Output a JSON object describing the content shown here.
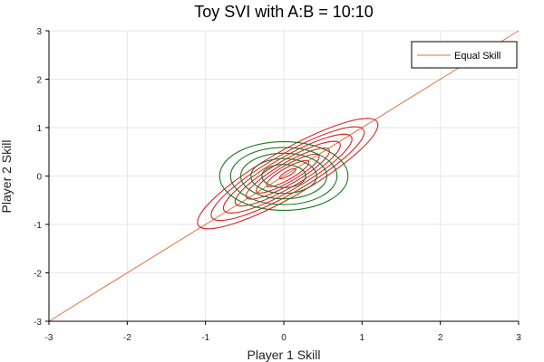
{
  "chart_data": {
    "type": "contour",
    "title": "Toy SVI with A:B = 10:10",
    "xlabel": "Player 1 Skill",
    "ylabel": "Player 2 Skill",
    "xlim": [
      -3,
      3
    ],
    "ylim": [
      -3,
      3
    ],
    "x_ticks": [
      -3,
      -2,
      -1,
      0,
      1,
      2,
      3
    ],
    "y_ticks": [
      -3,
      -2,
      -1,
      0,
      1,
      2,
      3
    ],
    "grid": true,
    "legend_position": "top-right",
    "legend": [
      "Equal Skill"
    ],
    "series": [
      {
        "name": "Equal Skill",
        "type": "line",
        "color": "#e26f46",
        "x": [
          -3,
          3
        ],
        "y": [
          -3,
          3
        ]
      },
      {
        "type": "contour",
        "color": "#d62728",
        "center": [
          0.05,
          0.05
        ],
        "orientation_deg": 30,
        "semi_axes": [
          [
            1.32,
            0.47
          ],
          [
            1.12,
            0.4
          ],
          [
            0.94,
            0.34
          ],
          [
            0.77,
            0.28
          ],
          [
            0.61,
            0.22
          ],
          [
            0.46,
            0.17
          ],
          [
            0.31,
            0.12
          ],
          [
            0.12,
            0.05
          ]
        ]
      },
      {
        "type": "contour",
        "color": "#1b7a1b",
        "center": [
          0.0,
          0.0
        ],
        "orientation_deg": 0,
        "semi_axes": [
          [
            0.82,
            0.71
          ],
          [
            0.68,
            0.59
          ],
          [
            0.55,
            0.47
          ],
          [
            0.42,
            0.36
          ],
          [
            0.28,
            0.24
          ]
        ]
      }
    ]
  }
}
